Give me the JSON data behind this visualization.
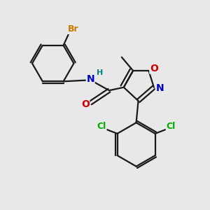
{
  "bg_color": "#e8e8e8",
  "bond_color": "#1a1a1a",
  "bond_width": 1.6,
  "atom_colors": {
    "Br": "#cc7700",
    "N": "#0000cc",
    "H": "#008080",
    "O_carbonyl": "#cc0000",
    "O_ring": "#cc0000",
    "N_ring": "#0000cc",
    "Cl": "#00aa00",
    "C": "#1a1a1a"
  },
  "figsize": [
    3.0,
    3.0
  ],
  "dpi": 100
}
